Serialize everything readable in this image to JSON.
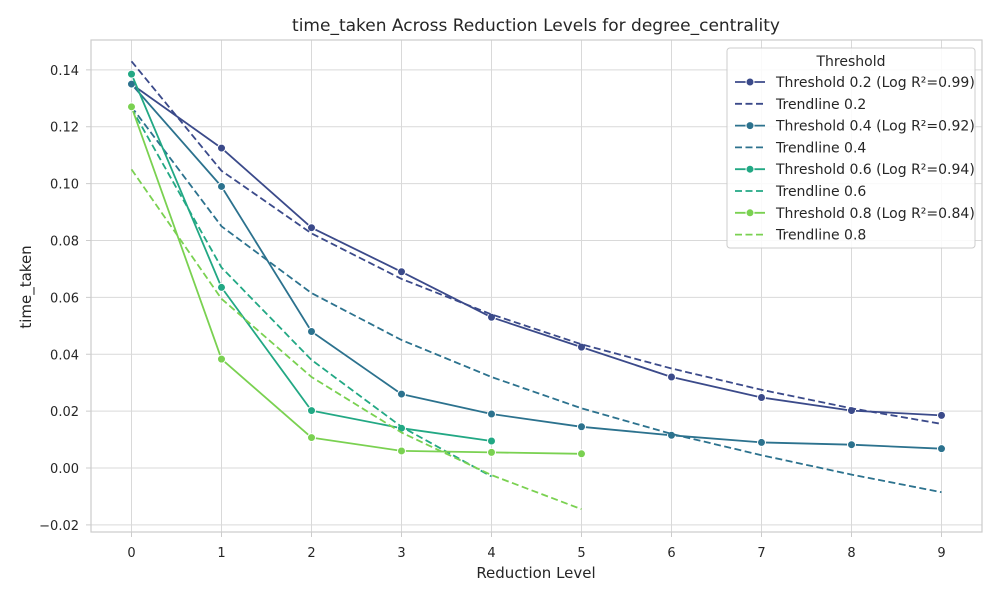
{
  "chart_data": {
    "type": "line",
    "title": "time_taken Across Reduction Levels for degree_centrality",
    "xlabel": "Reduction Level",
    "ylabel": "time_taken",
    "xlim": [
      -0.45,
      9.45
    ],
    "ylim": [
      -0.0225,
      0.1505
    ],
    "xticks": [
      0,
      1,
      2,
      3,
      4,
      5,
      6,
      7,
      8,
      9
    ],
    "yticks": [
      -0.02,
      0.0,
      0.02,
      0.04,
      0.06,
      0.08,
      0.1,
      0.12,
      0.14
    ],
    "ytick_labels": [
      "−0.02",
      "0.00",
      "0.02",
      "0.04",
      "0.06",
      "0.08",
      "0.10",
      "0.12",
      "0.14"
    ],
    "grid": true,
    "legend": {
      "title": "Threshold",
      "placement": "top-right"
    },
    "series": [
      {
        "name": "Threshold 0.2 (Log R²=0.99)",
        "style": "solid",
        "marker": true,
        "color": "#3b4a8a",
        "x": [
          0,
          1,
          2,
          3,
          4,
          5,
          6,
          7,
          8,
          9
        ],
        "y": [
          0.135,
          0.1125,
          0.0845,
          0.069,
          0.053,
          0.0425,
          0.032,
          0.0248,
          0.0202,
          0.0185
        ]
      },
      {
        "name": "Trendline 0.2",
        "style": "dashed",
        "marker": false,
        "color": "#3b4a8a",
        "x": [
          0,
          1,
          2,
          3,
          4,
          5,
          6,
          7,
          8,
          9
        ],
        "y": [
          0.143,
          0.1045,
          0.0825,
          0.0665,
          0.054,
          0.0435,
          0.035,
          0.0275,
          0.021,
          0.0155
        ]
      },
      {
        "name": "Threshold 0.4 (Log R²=0.92)",
        "style": "solid",
        "marker": true,
        "color": "#2c728e",
        "x": [
          0,
          1,
          2,
          3,
          4,
          5,
          6,
          7,
          8,
          9
        ],
        "y": [
          0.135,
          0.099,
          0.048,
          0.026,
          0.019,
          0.0145,
          0.0115,
          0.009,
          0.0082,
          0.0068
        ]
      },
      {
        "name": "Trendline 0.4",
        "style": "dashed",
        "marker": false,
        "color": "#2c728e",
        "x": [
          0,
          1,
          2,
          3,
          4,
          5,
          6,
          7,
          8,
          9
        ],
        "y": [
          0.127,
          0.085,
          0.0615,
          0.045,
          0.032,
          0.021,
          0.012,
          0.0045,
          -0.0023,
          -0.0085
        ]
      },
      {
        "name": "Threshold 0.6 (Log R²=0.94)",
        "style": "solid",
        "marker": true,
        "color": "#22a884",
        "x": [
          0,
          1,
          2,
          3,
          4
        ],
        "y": [
          0.1385,
          0.0635,
          0.0202,
          0.014,
          0.0095
        ]
      },
      {
        "name": "Trendline 0.6",
        "style": "dashed",
        "marker": false,
        "color": "#22a884",
        "x": [
          0,
          1,
          2,
          3,
          4
        ],
        "y": [
          0.1265,
          0.0705,
          0.038,
          0.0145,
          -0.003
        ]
      },
      {
        "name": "Threshold 0.8 (Log R²=0.84)",
        "style": "solid",
        "marker": true,
        "color": "#7ad151",
        "x": [
          0,
          1,
          2,
          3,
          4,
          5
        ],
        "y": [
          0.127,
          0.0383,
          0.0107,
          0.006,
          0.0055,
          0.005
        ]
      },
      {
        "name": "Trendline 0.8",
        "style": "dashed",
        "marker": false,
        "color": "#7ad151",
        "x": [
          0,
          1,
          2,
          3,
          4,
          5
        ],
        "y": [
          0.105,
          0.0595,
          0.032,
          0.0125,
          -0.0025,
          -0.0145
        ]
      }
    ]
  }
}
